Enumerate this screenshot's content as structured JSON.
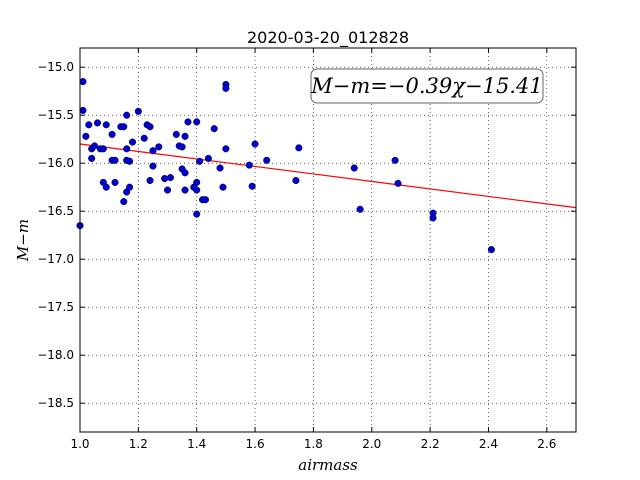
{
  "chart_data": {
    "type": "scatter",
    "title": "2020-03-20_012828",
    "xlabel": "airmass",
    "ylabel": "M−m",
    "xlim": [
      1.0,
      2.7
    ],
    "ylim": [
      -18.8,
      -14.8
    ],
    "y_inverted": true,
    "x_ticks": [
      1.0,
      1.2,
      1.4,
      1.6,
      1.8,
      2.0,
      2.2,
      2.4,
      2.6
    ],
    "x_tick_labels": [
      "1.0",
      "1.2",
      "1.4",
      "1.6",
      "1.8",
      "2.0",
      "2.2",
      "2.4",
      "2.6"
    ],
    "y_ticks": [
      -15.0,
      -15.5,
      -16.0,
      -16.5,
      -17.0,
      -17.5,
      -18.0,
      -18.5
    ],
    "y_tick_labels": [
      "−15.0",
      "−15.5",
      "−16.0",
      "−16.5",
      "−17.0",
      "−17.5",
      "−18.0",
      "−18.5"
    ],
    "grid": true,
    "annotation": "M−m=−0.39χ−15.41",
    "fit": {
      "slope": -0.39,
      "intercept": -15.41,
      "color": "#ff0000"
    },
    "point_color": "#0000cc",
    "points": [
      [
        1.0,
        -16.65
      ],
      [
        1.01,
        -15.15
      ],
      [
        1.01,
        -15.45
      ],
      [
        1.02,
        -15.72
      ],
      [
        1.03,
        -15.6
      ],
      [
        1.04,
        -15.85
      ],
      [
        1.04,
        -15.95
      ],
      [
        1.05,
        -15.82
      ],
      [
        1.06,
        -15.58
      ],
      [
        1.07,
        -15.85
      ],
      [
        1.08,
        -15.85
      ],
      [
        1.08,
        -16.2
      ],
      [
        1.09,
        -16.25
      ],
      [
        1.09,
        -15.6
      ],
      [
        1.11,
        -15.7
      ],
      [
        1.11,
        -15.97
      ],
      [
        1.12,
        -16.2
      ],
      [
        1.12,
        -15.97
      ],
      [
        1.14,
        -15.62
      ],
      [
        1.15,
        -15.62
      ],
      [
        1.15,
        -16.4
      ],
      [
        1.16,
        -15.97
      ],
      [
        1.16,
        -15.5
      ],
      [
        1.16,
        -16.3
      ],
      [
        1.16,
        -15.85
      ],
      [
        1.17,
        -15.98
      ],
      [
        1.17,
        -16.25
      ],
      [
        1.18,
        -15.78
      ],
      [
        1.2,
        -15.46
      ],
      [
        1.22,
        -15.74
      ],
      [
        1.23,
        -15.6
      ],
      [
        1.24,
        -15.62
      ],
      [
        1.24,
        -16.18
      ],
      [
        1.25,
        -16.03
      ],
      [
        1.25,
        -15.87
      ],
      [
        1.27,
        -15.83
      ],
      [
        1.29,
        -16.16
      ],
      [
        1.3,
        -16.28
      ],
      [
        1.31,
        -16.15
      ],
      [
        1.33,
        -15.7
      ],
      [
        1.34,
        -15.82
      ],
      [
        1.35,
        -15.83
      ],
      [
        1.35,
        -16.06
      ],
      [
        1.36,
        -16.1
      ],
      [
        1.36,
        -15.72
      ],
      [
        1.36,
        -16.28
      ],
      [
        1.37,
        -15.57
      ],
      [
        1.39,
        -16.25
      ],
      [
        1.4,
        -16.2
      ],
      [
        1.4,
        -16.28
      ],
      [
        1.4,
        -16.53
      ],
      [
        1.4,
        -15.57
      ],
      [
        1.41,
        -15.98
      ],
      [
        1.42,
        -16.38
      ],
      [
        1.43,
        -16.38
      ],
      [
        1.44,
        -15.95
      ],
      [
        1.46,
        -15.64
      ],
      [
        1.48,
        -16.05
      ],
      [
        1.49,
        -16.25
      ],
      [
        1.5,
        -15.85
      ],
      [
        1.5,
        -15.18
      ],
      [
        1.5,
        -15.22
      ],
      [
        1.58,
        -16.02
      ],
      [
        1.59,
        -16.24
      ],
      [
        1.6,
        -15.8
      ],
      [
        1.64,
        -15.97
      ],
      [
        1.74,
        -16.18
      ],
      [
        1.75,
        -15.84
      ],
      [
        1.94,
        -16.05
      ],
      [
        1.96,
        -16.48
      ],
      [
        2.08,
        -15.97
      ],
      [
        2.09,
        -16.21
      ],
      [
        2.21,
        -16.52
      ],
      [
        2.21,
        -16.57
      ],
      [
        2.41,
        -16.9
      ]
    ]
  }
}
